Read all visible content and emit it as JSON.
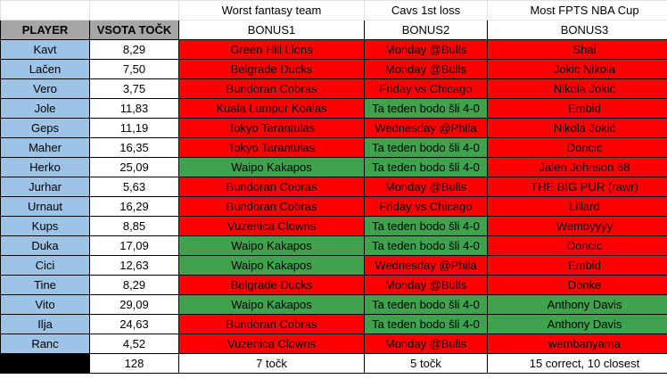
{
  "titles": {
    "b1": "Worst fantasy team",
    "b2": "Cavs 1st loss",
    "b3": "Most FPTS NBA Cup"
  },
  "headers": {
    "player": "PLAYER",
    "total": "VSOTA TOČK",
    "b1": "BONUS1",
    "b2": "BONUS2",
    "b3": "BONUS3"
  },
  "colors": {
    "red": "#ff0000",
    "green": "#3fa34d",
    "player_bg": "#9dc3e6",
    "header_bg": "#a6a6a6"
  },
  "rows": [
    {
      "player": "Kavt",
      "total": "8,29",
      "b1": "Green Hill Lions",
      "b1c": "red",
      "b2": "Monday @Bulls",
      "b2c": "red",
      "b3": "Shai",
      "b3c": "red"
    },
    {
      "player": "Lačen",
      "total": "7,50",
      "b1": "Belgrade Ducks",
      "b1c": "red",
      "b2": "Monday @Bulls",
      "b2c": "red",
      "b3": "Jokic Nikola",
      "b3c": "red"
    },
    {
      "player": "Vero",
      "total": "3,75",
      "b1": "Bundoran Cobras",
      "b1c": "red",
      "b2": "Friday vs Chicago",
      "b2c": "red",
      "b3": "Nikola Jokić",
      "b3c": "red"
    },
    {
      "player": "Jole",
      "total": "11,83",
      "b1": "Kuala Lumpur Koalas",
      "b1c": "red",
      "b2": "Ta teden bodo šli 4-0",
      "b2c": "green",
      "b3": "Embid",
      "b3c": "red"
    },
    {
      "player": "Geps",
      "total": "11,19",
      "b1": "Tokyo Tarantulas",
      "b1c": "red",
      "b2": "Wednesday @Phila",
      "b2c": "red",
      "b3": "Nikola Jokić",
      "b3c": "red"
    },
    {
      "player": "Maher",
      "total": "16,35",
      "b1": "Tokyo Tarantulas",
      "b1c": "red",
      "b2": "Ta teden bodo šli 4-0",
      "b2c": "green",
      "b3": "Doncic",
      "b3c": "red"
    },
    {
      "player": "Herko",
      "total": "25,09",
      "b1": "Waipo Kakapos",
      "b1c": "green",
      "b2": "Ta teden bodo šli 4-0",
      "b2c": "green",
      "b3": "Jalen Johnson 68",
      "b3c": "red"
    },
    {
      "player": "Jurhar",
      "total": "5,63",
      "b1": "Bundoran Cobras",
      "b1c": "red",
      "b2": "Monday @Bulls",
      "b2c": "red",
      "b3": "THE BIG PUR (rawr)",
      "b3c": "red"
    },
    {
      "player": "Urnaut",
      "total": "16,29",
      "b1": "Bundoran Cobras",
      "b1c": "red",
      "b2": "Friday vs Chicago",
      "b2c": "red",
      "b3": "Lillard",
      "b3c": "red"
    },
    {
      "player": "Kups",
      "total": "8,85",
      "b1": "Vuzenica Clowns",
      "b1c": "red",
      "b2": "Ta teden bodo šli 4-0",
      "b2c": "green",
      "b3": "Wembyyyy",
      "b3c": "red"
    },
    {
      "player": "Duka",
      "total": "17,09",
      "b1": "Waipo Kakapos",
      "b1c": "green",
      "b2": "Ta teden bodo šli 4-0",
      "b2c": "green",
      "b3": "Doncic",
      "b3c": "red"
    },
    {
      "player": "Cici",
      "total": "12,63",
      "b1": "Waipo Kakapos",
      "b1c": "green",
      "b2": "Wednesday @Phila",
      "b2c": "red",
      "b3": "Embid",
      "b3c": "red"
    },
    {
      "player": "Tine",
      "total": "8,29",
      "b1": "Belgrade Ducks",
      "b1c": "red",
      "b2": "Monday @Bulls",
      "b2c": "red",
      "b3": "Donke",
      "b3c": "red"
    },
    {
      "player": "Vito",
      "total": "29,09",
      "b1": "Waipo Kakapos",
      "b1c": "green",
      "b2": "Ta teden bodo šli 4-0",
      "b2c": "green",
      "b3": "Anthony Davis",
      "b3c": "green"
    },
    {
      "player": "Ilja",
      "total": "24,63",
      "b1": "Bundoran Cobras",
      "b1c": "red",
      "b2": "Ta teden bodo šli 4-0",
      "b2c": "green",
      "b3": "Anthony Davis",
      "b3c": "green"
    },
    {
      "player": "Ranc",
      "total": "4,52",
      "b1": "Vuzenica Clowns",
      "b1c": "red",
      "b2": "Monday @Bulls",
      "b2c": "red",
      "b3": "wembanyama",
      "b3c": "red"
    }
  ],
  "footer": {
    "total": "128",
    "b1": "7 točk",
    "b2": "5 točk",
    "b3": "15 correct, 10 closest"
  }
}
